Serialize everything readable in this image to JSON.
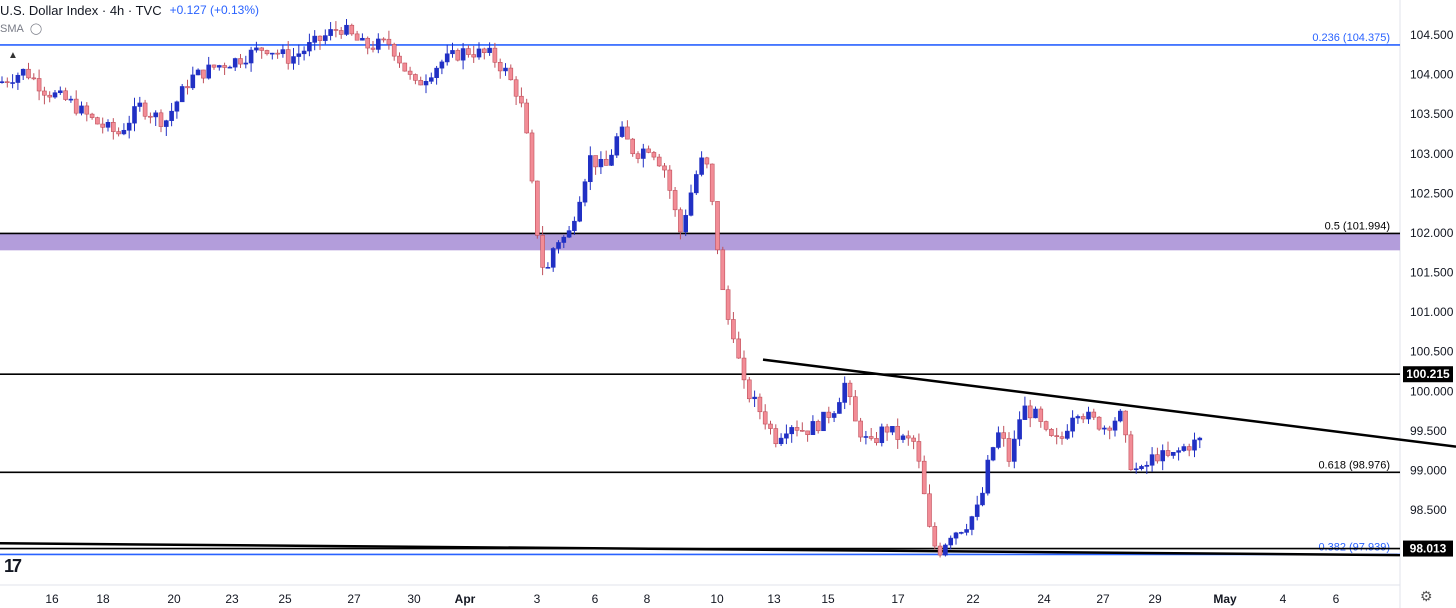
{
  "header": {
    "title": "U.S. Dollar Index · 4h · TVC",
    "change": "+0.127 (+0.13%)",
    "indicator": "SMA"
  },
  "icons": {
    "visibility": "eye-slash-icon",
    "settings": "gear-icon",
    "logo": "tradingview-logo-icon",
    "collapse": "chevron-up-icon"
  },
  "colors": {
    "up": "#2130c4",
    "down": "#f28c96",
    "fib": "#2962ff",
    "zone": "#b39ddb",
    "level": "#000000"
  },
  "chart_data": {
    "type": "candlestick",
    "title": "U.S. Dollar Index · 4h · TVC",
    "ylim": [
      97.7,
      104.62
    ],
    "y_ticks": [
      "104.500",
      "104.000",
      "103.500",
      "103.000",
      "102.500",
      "102.000",
      "101.500",
      "101.000",
      "100.500",
      "100.000",
      "99.500",
      "99.000",
      "98.500"
    ],
    "x_ticks": [
      "16",
      "18",
      "20",
      "23",
      "25",
      "27",
      "30",
      "Apr",
      "3",
      "6",
      "8",
      "10",
      "13",
      "15",
      "17",
      "22",
      "24",
      "27",
      "29",
      "May",
      "4",
      "6"
    ],
    "fib_levels": [
      {
        "label": "0.236 (104.375)",
        "value": 104.375,
        "color": "blue"
      },
      {
        "label": "0.5 (101.994)",
        "value": 101.994,
        "color": "black"
      },
      {
        "label": "0.618 (98.976)",
        "value": 98.976,
        "color": "black"
      },
      {
        "label": "0.382 (97.939)",
        "value": 97.939,
        "color": "blue"
      }
    ],
    "price_tags": [
      {
        "label": "100.215",
        "value": 100.215
      },
      {
        "label": "98.013",
        "value": 98.013
      }
    ],
    "zone": {
      "from": 101.78,
      "to": 101.994
    },
    "trendlines": [
      {
        "from": [
          0,
          98.08
        ],
        "to": [
          1400,
          97.93
        ]
      },
      {
        "from": [
          763,
          100.4
        ],
        "to": [
          1456,
          99.3
        ]
      }
    ],
    "anchors": [
      [
        0,
        103.9
      ],
      [
        25,
        104.05
      ],
      [
        45,
        103.8
      ],
      [
        70,
        103.65
      ],
      [
        95,
        103.4
      ],
      [
        118,
        103.25
      ],
      [
        140,
        103.6
      ],
      [
        165,
        103.4
      ],
      [
        190,
        103.95
      ],
      [
        215,
        104.1
      ],
      [
        240,
        104.2
      ],
      [
        265,
        104.35
      ],
      [
        290,
        104.2
      ],
      [
        315,
        104.4
      ],
      [
        340,
        104.6
      ],
      [
        365,
        104.35
      ],
      [
        390,
        104.4
      ],
      [
        415,
        103.85
      ],
      [
        440,
        104.15
      ],
      [
        465,
        104.3
      ],
      [
        490,
        104.25
      ],
      [
        505,
        104.05
      ],
      [
        520,
        103.7
      ],
      [
        528,
        103.1
      ],
      [
        535,
        102.2
      ],
      [
        545,
        101.4
      ],
      [
        555,
        101.9
      ],
      [
        568,
        101.95
      ],
      [
        578,
        102.4
      ],
      [
        590,
        102.95
      ],
      [
        605,
        102.8
      ],
      [
        620,
        103.3
      ],
      [
        635,
        103.0
      ],
      [
        650,
        103.1
      ],
      [
        665,
        102.8
      ],
      [
        680,
        102.0
      ],
      [
        695,
        102.7
      ],
      [
        705,
        103.0
      ],
      [
        715,
        102.1
      ],
      [
        725,
        101.0
      ],
      [
        735,
        100.7
      ],
      [
        742,
        100.1
      ],
      [
        752,
        99.9
      ],
      [
        763,
        99.7
      ],
      [
        775,
        99.4
      ],
      [
        790,
        99.6
      ],
      [
        805,
        99.5
      ],
      [
        820,
        99.6
      ],
      [
        835,
        99.8
      ],
      [
        845,
        100.1
      ],
      [
        855,
        99.6
      ],
      [
        870,
        99.3
      ],
      [
        885,
        99.55
      ],
      [
        900,
        99.4
      ],
      [
        915,
        99.35
      ],
      [
        922,
        98.85
      ],
      [
        930,
        98.2
      ],
      [
        938,
        97.95
      ],
      [
        950,
        98.2
      ],
      [
        965,
        98.3
      ],
      [
        980,
        98.55
      ],
      [
        990,
        99.2
      ],
      [
        1000,
        99.5
      ],
      [
        1010,
        99.1
      ],
      [
        1022,
        99.8
      ],
      [
        1035,
        99.7
      ],
      [
        1048,
        99.4
      ],
      [
        1060,
        99.35
      ],
      [
        1075,
        99.8
      ],
      [
        1090,
        99.65
      ],
      [
        1105,
        99.55
      ],
      [
        1120,
        99.7
      ],
      [
        1130,
        99.1
      ],
      [
        1140,
        98.95
      ],
      [
        1155,
        99.2
      ],
      [
        1170,
        99.15
      ],
      [
        1185,
        99.3
      ],
      [
        1205,
        99.4
      ]
    ]
  }
}
